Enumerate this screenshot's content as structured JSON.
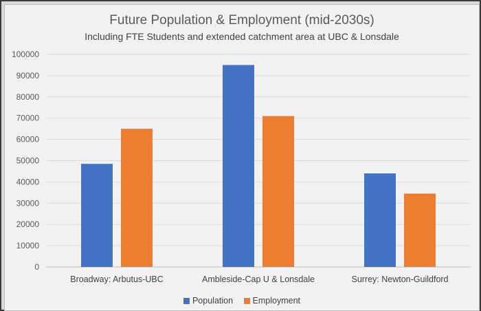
{
  "chart_data": {
    "type": "bar",
    "title": "Future Population & Employment (mid-2030s)",
    "subtitle": "Including FTE Students and extended catchment area at UBC & Lonsdale",
    "categories": [
      "Broadway: Arbutus-UBC",
      "Ambleside-Cap U & Lonsdale",
      "Surrey: Newton-Guildford"
    ],
    "series": [
      {
        "name": "Population",
        "color": "#4472c4",
        "values": [
          48500,
          95000,
          44000
        ]
      },
      {
        "name": "Employment",
        "color": "#ed7d31",
        "values": [
          65000,
          71000,
          34500
        ]
      }
    ],
    "ylim": [
      0,
      100000
    ],
    "yticks": [
      "0",
      "10000",
      "20000",
      "30000",
      "40000",
      "50000",
      "60000",
      "70000",
      "80000",
      "90000",
      "100000"
    ],
    "xlabel": "",
    "ylabel": "",
    "grid": true,
    "legend_position": "bottom"
  }
}
